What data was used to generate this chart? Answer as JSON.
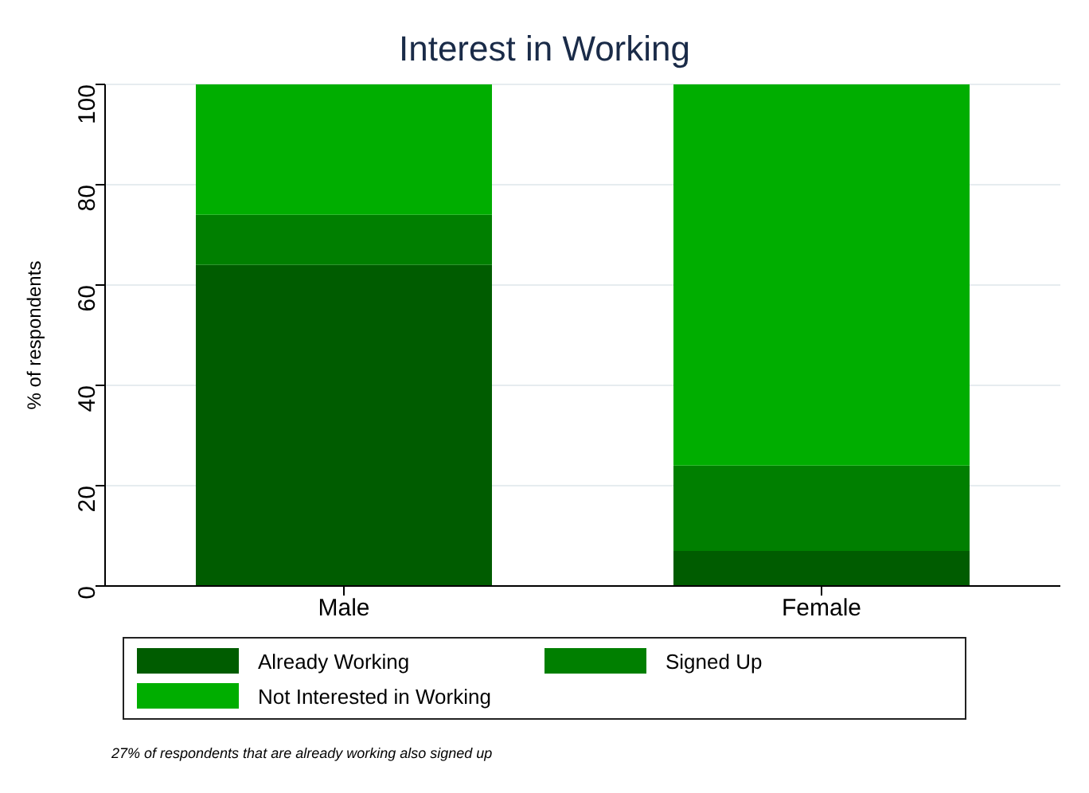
{
  "chart_data": {
    "type": "bar",
    "title": "Interest in Working",
    "ylabel": "% of respondents",
    "categories": [
      "Male",
      "Female"
    ],
    "stacked": true,
    "series": [
      {
        "name": "Already Working",
        "color": "#005c00",
        "values": [
          64,
          7
        ]
      },
      {
        "name": "Signed Up",
        "color": "#007f00",
        "values": [
          10,
          17
        ]
      },
      {
        "name": "Not Interested in Working",
        "color": "#00ae00",
        "values": [
          26,
          76
        ]
      }
    ],
    "ylim": [
      0,
      100
    ],
    "yticks": [
      0,
      20,
      40,
      60,
      80,
      100
    ],
    "grid": "y",
    "legend": "bottom",
    "annotations": [
      "27% of respondents that are already working also signed up"
    ]
  }
}
